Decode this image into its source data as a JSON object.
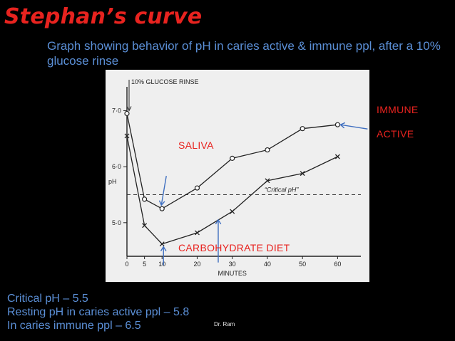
{
  "slide": {
    "title": "Stephan’s curve",
    "subtitle": "Graph showing behavior of pH in caries active & immune ppl, after a 10% glucose rinse",
    "annotations": {
      "saliva": "SALIVA",
      "carbohydrate_diet": "CARBOHYDRATE DIET",
      "immune": "IMMUNE",
      "active": "ACTIVE"
    },
    "notes": [
      "Critical pH – 5.5",
      "Resting pH in caries active ppl – 5.8",
      "In caries immune ppl – 6.5"
    ],
    "footer": "Dr. Ram",
    "colors": {
      "title": "#e8231f",
      "subtitle": "#5b8fd6",
      "annotation_red": "#e8231f",
      "background": "#000000",
      "arrow_blue": "#3f6fc0"
    }
  },
  "chart_data": {
    "type": "line",
    "title": "",
    "xlabel": "MINUTES",
    "ylabel": "pH",
    "xlim": [
      0,
      65
    ],
    "ylim": [
      4.4,
      7.35
    ],
    "x_ticks": [
      0,
      5,
      10,
      20,
      30,
      40,
      50,
      60
    ],
    "y_ticks": [
      {
        "value": 7.0,
        "label": "7·0"
      },
      {
        "value": 6.0,
        "label": "6·0"
      },
      {
        "value": 5.0,
        "label": "5·0"
      }
    ],
    "critical_ph": {
      "value": 5.5,
      "label": "“Critical pH”"
    },
    "glucose_rinse_label": "10% GLUCOSE RINSE",
    "series": [
      {
        "marker": "circle",
        "x": [
          0,
          5,
          10,
          20,
          30,
          40,
          50,
          60
        ],
        "y": [
          6.95,
          5.42,
          5.25,
          5.62,
          6.15,
          6.3,
          6.68,
          6.75
        ]
      },
      {
        "marker": "x",
        "x": [
          0,
          5,
          10,
          20,
          30,
          40,
          50,
          60
        ],
        "y": [
          6.55,
          4.95,
          4.62,
          4.82,
          5.2,
          5.75,
          5.88,
          6.18
        ]
      }
    ]
  }
}
